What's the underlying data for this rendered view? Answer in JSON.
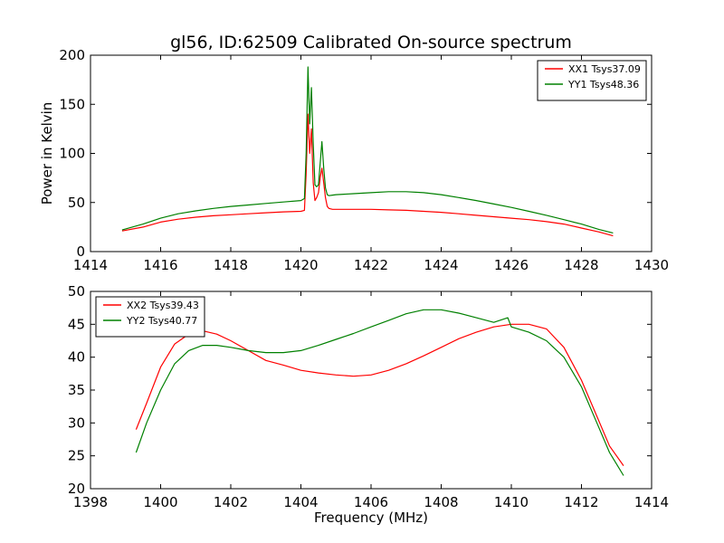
{
  "figure": {
    "title": "gl56, ID:62509 Calibrated On-source spectrum",
    "xlabel": "Frequency (MHz)"
  },
  "chart_data": [
    {
      "type": "line",
      "title": "gl56, ID:62509 Calibrated On-source spectrum",
      "ylabel": "Power in Kelvin",
      "xlim": [
        1414,
        1430
      ],
      "ylim": [
        0,
        200
      ],
      "xticks": [
        "1414",
        "1416",
        "1418",
        "1420",
        "1422",
        "1424",
        "1426",
        "1428",
        "1430"
      ],
      "yticks": [
        "0",
        "50",
        "100",
        "150",
        "200"
      ],
      "legend": "top-right",
      "grid": false,
      "series": [
        {
          "name": "XX1 Tsys37.09",
          "color": "#ff0000",
          "x": [
            1414.9,
            1415.5,
            1416.0,
            1416.5,
            1417.0,
            1417.5,
            1418.0,
            1418.5,
            1419.0,
            1419.5,
            1420.0,
            1420.1,
            1420.15,
            1420.2,
            1420.25,
            1420.3,
            1420.35,
            1420.4,
            1420.45,
            1420.5,
            1420.55,
            1420.6,
            1420.65,
            1420.7,
            1420.75,
            1420.8,
            1420.9,
            1421.0,
            1421.5,
            1422.0,
            1422.5,
            1423.0,
            1423.5,
            1424.0,
            1424.5,
            1425.0,
            1425.5,
            1426.0,
            1426.5,
            1427.0,
            1427.5,
            1428.0,
            1428.5,
            1428.9
          ],
          "y": [
            21,
            25,
            30,
            33,
            35,
            36.5,
            37.5,
            38.5,
            39.5,
            40.5,
            41,
            42,
            80,
            140,
            100,
            125,
            70,
            52,
            55,
            60,
            75,
            85,
            70,
            55,
            46,
            44,
            43,
            43,
            43,
            43,
            42.5,
            42,
            41,
            40,
            38.5,
            37,
            35.5,
            34,
            32.5,
            30.5,
            28,
            24,
            20,
            16
          ]
        },
        {
          "name": "YY1 Tsys48.36",
          "color": "#008000",
          "x": [
            1414.9,
            1415.5,
            1416.0,
            1416.5,
            1417.0,
            1417.5,
            1418.0,
            1418.5,
            1419.0,
            1419.5,
            1420.0,
            1420.1,
            1420.15,
            1420.2,
            1420.25,
            1420.3,
            1420.35,
            1420.4,
            1420.45,
            1420.5,
            1420.55,
            1420.6,
            1420.65,
            1420.7,
            1420.75,
            1420.8,
            1420.9,
            1421.0,
            1421.5,
            1422.0,
            1422.5,
            1423.0,
            1423.5,
            1424.0,
            1424.5,
            1425.0,
            1425.5,
            1426.0,
            1426.5,
            1427.0,
            1427.5,
            1428.0,
            1428.5,
            1428.9
          ],
          "y": [
            22,
            28,
            34,
            38.5,
            41.5,
            44,
            46,
            47.5,
            49,
            50.5,
            52,
            54,
            100,
            188,
            130,
            167,
            110,
            68,
            66,
            68,
            90,
            112,
            85,
            65,
            58,
            57,
            57.5,
            58,
            59,
            60,
            61,
            61,
            60,
            58,
            55,
            52,
            48.5,
            45,
            41,
            37,
            32.5,
            28,
            22.5,
            19
          ]
        }
      ]
    },
    {
      "type": "line",
      "xlabel": "Frequency (MHz)",
      "ylabel": "",
      "xlim": [
        1398,
        1414
      ],
      "ylim": [
        20,
        50
      ],
      "xticks": [
        "1398",
        "1400",
        "1402",
        "1404",
        "1406",
        "1408",
        "1410",
        "1412",
        "1414"
      ],
      "yticks": [
        "20",
        "25",
        "30",
        "35",
        "40",
        "45",
        "50"
      ],
      "legend": "top-left",
      "grid": false,
      "series": [
        {
          "name": "XX2 Tsys39.43",
          "color": "#ff0000",
          "x": [
            1399.3,
            1399.6,
            1400.0,
            1400.4,
            1400.8,
            1401.2,
            1401.6,
            1402.0,
            1402.5,
            1403.0,
            1403.5,
            1404.0,
            1404.5,
            1405.0,
            1405.5,
            1406.0,
            1406.5,
            1407.0,
            1407.5,
            1408.0,
            1408.5,
            1409.0,
            1409.5,
            1410.0,
            1410.5,
            1411.0,
            1411.5,
            1412.0,
            1412.4,
            1412.8,
            1413.2
          ],
          "y": [
            29,
            33,
            38.5,
            42,
            43.5,
            44,
            43.5,
            42.5,
            41,
            39.5,
            38.8,
            38,
            37.6,
            37.3,
            37.1,
            37.3,
            38,
            39,
            40.2,
            41.5,
            42.8,
            43.8,
            44.6,
            45,
            45,
            44.3,
            41.5,
            36.5,
            31.5,
            26.5,
            23.5
          ]
        },
        {
          "name": "YY2 Tsys40.77",
          "color": "#008000",
          "x": [
            1399.3,
            1399.6,
            1400.0,
            1400.4,
            1400.8,
            1401.2,
            1401.6,
            1402.0,
            1402.5,
            1403.0,
            1403.5,
            1404.0,
            1404.5,
            1405.0,
            1405.5,
            1406.0,
            1406.5,
            1407.0,
            1407.5,
            1408.0,
            1408.5,
            1409.0,
            1409.5,
            1409.9,
            1410.0,
            1410.5,
            1411.0,
            1411.5,
            1412.0,
            1412.4,
            1412.8,
            1413.2
          ],
          "y": [
            25.5,
            30,
            35,
            39,
            41,
            41.8,
            41.8,
            41.5,
            41,
            40.7,
            40.7,
            41,
            41.8,
            42.7,
            43.6,
            44.6,
            45.6,
            46.6,
            47.2,
            47.2,
            46.7,
            46,
            45.3,
            46,
            44.6,
            43.8,
            42.5,
            40,
            35.5,
            30.5,
            25.5,
            22
          ]
        }
      ]
    }
  ]
}
